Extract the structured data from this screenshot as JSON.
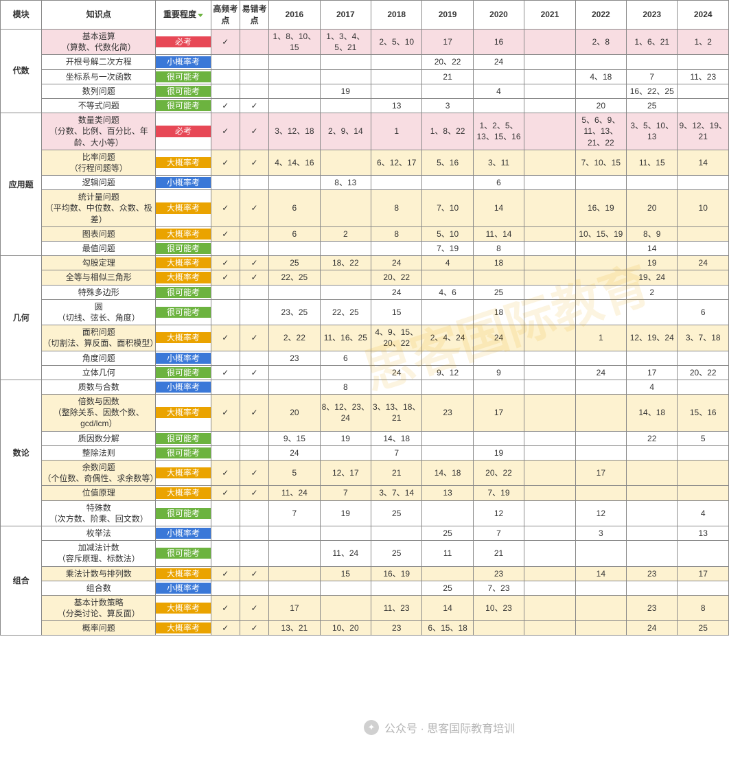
{
  "headers": {
    "module": "模块",
    "topic": "知识点",
    "importance": "重要程度",
    "highfreq": "高频考点",
    "error": "易错考点",
    "years": [
      "2016",
      "2017",
      "2018",
      "2019",
      "2020",
      "2021",
      "2022",
      "2023",
      "2024"
    ]
  },
  "importance_labels": {
    "must": "必考",
    "low": "小概率考",
    "likely": "很可能考",
    "high": "大概率考"
  },
  "check_mark": "✓",
  "watermark_main": "思客国际教育",
  "watermark_footer": "公众号 · 思客国际教育培训",
  "colors": {
    "pill_red": "#e74856",
    "pill_blue": "#3a78d8",
    "pill_green": "#6cb33f",
    "pill_orange": "#eaa300",
    "tint_pink": "#f8dde2",
    "tint_cream": "#fdf2d0",
    "border": "#888888"
  },
  "modules": [
    {
      "name": "代数",
      "rows": [
        {
          "topic": "基本运算\n（算数、代数化简）",
          "imp": "must",
          "hf": true,
          "err": false,
          "tint": "pink",
          "y": [
            "1、8、10、15",
            "1、3、4、5、21",
            "2、5、10",
            "17",
            "16",
            "",
            "2、8",
            "1、6、21",
            "1、2"
          ]
        },
        {
          "topic": "开根号解二次方程",
          "imp": "low",
          "hf": false,
          "err": false,
          "tint": "none",
          "y": [
            "",
            "",
            "",
            "20、22",
            "24",
            "",
            "",
            "",
            ""
          ]
        },
        {
          "topic": "坐标系与一次函数",
          "imp": "likely",
          "hf": false,
          "err": false,
          "tint": "none",
          "y": [
            "",
            "",
            "",
            "21",
            "",
            "",
            "4、18",
            "7",
            "11、23"
          ]
        },
        {
          "topic": "数列问题",
          "imp": "likely",
          "hf": false,
          "err": false,
          "tint": "none",
          "y": [
            "",
            "19",
            "",
            "",
            "4",
            "",
            "",
            "16、22、25",
            ""
          ]
        },
        {
          "topic": "不等式问题",
          "imp": "likely",
          "hf": true,
          "err": true,
          "tint": "none",
          "y": [
            "",
            "",
            "13",
            "3",
            "",
            "",
            "20",
            "25",
            ""
          ]
        }
      ]
    },
    {
      "name": "应用题",
      "rows": [
        {
          "topic": "数量类问题\n（分数、比例、百分比、年龄、大小等）",
          "imp": "must",
          "hf": true,
          "err": true,
          "tint": "pink",
          "y": [
            "3、12、18",
            "2、9、14",
            "1",
            "1、8、22",
            "1、2、5、13、15、16",
            "",
            "5、6、9、11、13、21、22",
            "3、5、10、13",
            "9、12、19、21"
          ]
        },
        {
          "topic": "比率问题\n（行程问题等）",
          "imp": "high",
          "hf": true,
          "err": true,
          "tint": "cream",
          "y": [
            "4、14、16",
            "",
            "6、12、17",
            "5、16",
            "3、11",
            "",
            "7、10、15",
            "11、15",
            "14"
          ]
        },
        {
          "topic": "逻辑问题",
          "imp": "low",
          "hf": false,
          "err": false,
          "tint": "none",
          "y": [
            "",
            "8、13",
            "",
            "",
            "6",
            "",
            "",
            "",
            ""
          ]
        },
        {
          "topic": "统计量问题\n（平均数、中位数、众数、极差）",
          "imp": "high",
          "hf": true,
          "err": true,
          "tint": "cream",
          "y": [
            "6",
            "",
            "8",
            "7、10",
            "14",
            "",
            "16、19",
            "20",
            "10"
          ]
        },
        {
          "topic": "图表问题",
          "imp": "high",
          "hf": true,
          "err": false,
          "tint": "cream",
          "y": [
            "6",
            "2",
            "8",
            "5、10",
            "11、14",
            "",
            "10、15、19",
            "8、9",
            ""
          ]
        },
        {
          "topic": "最值问题",
          "imp": "likely",
          "hf": false,
          "err": false,
          "tint": "none",
          "y": [
            "",
            "",
            "",
            "7、19",
            "8",
            "",
            "",
            "14",
            ""
          ]
        }
      ]
    },
    {
      "name": "几何",
      "rows": [
        {
          "topic": "勾股定理",
          "imp": "high",
          "hf": true,
          "err": true,
          "tint": "cream",
          "y": [
            "25",
            "18、22",
            "24",
            "4",
            "18",
            "",
            "",
            "19",
            "24"
          ]
        },
        {
          "topic": "全等与相似三角形",
          "imp": "high",
          "hf": true,
          "err": true,
          "tint": "cream",
          "y": [
            "22、25",
            "",
            "20、22",
            "",
            "",
            "",
            "",
            "19、24",
            ""
          ]
        },
        {
          "topic": "特殊多边形",
          "imp": "likely",
          "hf": false,
          "err": false,
          "tint": "none",
          "y": [
            "",
            "",
            "24",
            "4、6",
            "25",
            "",
            "",
            "2",
            ""
          ]
        },
        {
          "topic": "圆\n（切线、弦长、角度）",
          "imp": "likely",
          "hf": false,
          "err": false,
          "tint": "none",
          "y": [
            "23、25",
            "22、25",
            "15",
            "",
            "18",
            "",
            "",
            "",
            "6"
          ]
        },
        {
          "topic": "面积问题\n（切割法、算反面、面积模型）",
          "imp": "high",
          "hf": true,
          "err": true,
          "tint": "cream",
          "y": [
            "2、22",
            "11、16、25",
            "4、9、15、20、22",
            "2、4、24",
            "24",
            "",
            "1",
            "12、19、24",
            "3、7、18"
          ]
        },
        {
          "topic": "角度问题",
          "imp": "low",
          "hf": false,
          "err": false,
          "tint": "none",
          "y": [
            "23",
            "6",
            "",
            "",
            "",
            "",
            "",
            "",
            ""
          ]
        },
        {
          "topic": "立体几何",
          "imp": "likely",
          "hf": true,
          "err": true,
          "tint": "none",
          "y": [
            "",
            "",
            "24",
            "9、12",
            "9",
            "",
            "24",
            "17",
            "20、22"
          ]
        }
      ]
    },
    {
      "name": "数论",
      "rows": [
        {
          "topic": "质数与合数",
          "imp": "low",
          "hf": false,
          "err": false,
          "tint": "none",
          "y": [
            "",
            "8",
            "",
            "",
            "",
            "",
            "",
            "4",
            ""
          ]
        },
        {
          "topic": "倍数与因数\n（整除关系、因数个数、gcd/lcm）",
          "imp": "high",
          "hf": true,
          "err": true,
          "tint": "cream",
          "y": [
            "20",
            "8、12、23、24",
            "3、13、18、21",
            "23",
            "17",
            "",
            "",
            "14、18",
            "15、16"
          ]
        },
        {
          "topic": "质因数分解",
          "imp": "likely",
          "hf": false,
          "err": false,
          "tint": "none",
          "y": [
            "9、15",
            "19",
            "14、18",
            "",
            "",
            "",
            "",
            "22",
            "5"
          ]
        },
        {
          "topic": "整除法则",
          "imp": "likely",
          "hf": false,
          "err": false,
          "tint": "none",
          "y": [
            "24",
            "",
            "7",
            "",
            "19",
            "",
            "",
            "",
            ""
          ]
        },
        {
          "topic": "余数问题\n（个位数、奇偶性、求余数等）",
          "imp": "high",
          "hf": true,
          "err": true,
          "tint": "cream",
          "y": [
            "5",
            "12、17",
            "21",
            "14、18",
            "20、22",
            "",
            "17",
            "",
            ""
          ]
        },
        {
          "topic": "位值原理",
          "imp": "high",
          "hf": true,
          "err": true,
          "tint": "cream",
          "y": [
            "11、24",
            "7",
            "3、7、14",
            "13",
            "7、19",
            "",
            "",
            "",
            ""
          ]
        },
        {
          "topic": "特殊数\n（次方数、阶乘、回文数）",
          "imp": "likely",
          "hf": false,
          "err": false,
          "tint": "none",
          "y": [
            "7",
            "19",
            "25",
            "",
            "12",
            "",
            "12",
            "",
            "4"
          ]
        }
      ]
    },
    {
      "name": "组合",
      "rows": [
        {
          "topic": "枚举法",
          "imp": "low",
          "hf": false,
          "err": false,
          "tint": "none",
          "y": [
            "",
            "",
            "",
            "25",
            "7",
            "",
            "3",
            "",
            "13"
          ]
        },
        {
          "topic": "加减法计数\n（容斥原理、标数法）",
          "imp": "likely",
          "hf": false,
          "err": false,
          "tint": "none",
          "y": [
            "",
            "11、24",
            "25",
            "11",
            "21",
            "",
            "",
            "",
            ""
          ]
        },
        {
          "topic": "乘法计数与排列数",
          "imp": "high",
          "hf": true,
          "err": true,
          "tint": "cream",
          "y": [
            "",
            "15",
            "16、19",
            "",
            "23",
            "",
            "14",
            "23",
            "17"
          ]
        },
        {
          "topic": "组合数",
          "imp": "low",
          "hf": false,
          "err": false,
          "tint": "none",
          "y": [
            "",
            "",
            "",
            "25",
            "7、23",
            "",
            "",
            "",
            ""
          ]
        },
        {
          "topic": "基本计数策略\n（分类讨论、算反面）",
          "imp": "high",
          "hf": true,
          "err": true,
          "tint": "cream",
          "y": [
            "17",
            "",
            "11、23",
            "14",
            "10、23",
            "",
            "",
            "23",
            "8"
          ]
        },
        {
          "topic": "概率问题",
          "imp": "high",
          "hf": true,
          "err": true,
          "tint": "cream",
          "y": [
            "13、21",
            "10、20",
            "23",
            "6、15、18",
            "",
            "",
            "",
            "24",
            "25"
          ]
        }
      ]
    }
  ]
}
